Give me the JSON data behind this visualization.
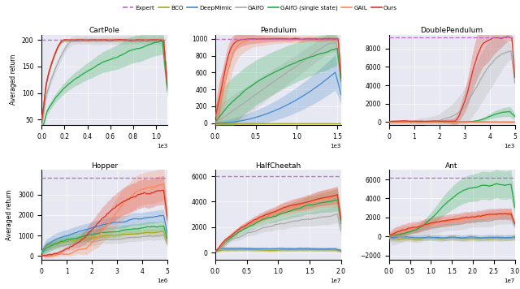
{
  "legend_entries": [
    "Expert",
    "BCO",
    "DeepMimic",
    "GAIfO",
    "GAIfO (single state)",
    "GAIL",
    "Ours"
  ],
  "colors": {
    "Expert": "#bb66cc",
    "BCO": "#aaaa22",
    "DeepMimic": "#4488cc",
    "GAIfO": "#aaaaaa",
    "GAIfO_single": "#22aa44",
    "GAIL": "#ff8855",
    "Ours": "#dd3322"
  },
  "subplots": [
    {
      "title": "CartPole",
      "xlabel_multiplier": "1e3",
      "xlim": [
        0,
        1100
      ],
      "ylim": [
        40,
        210
      ],
      "yticks": [
        50,
        100,
        150,
        200
      ],
      "expert_y": 200
    },
    {
      "title": "Pendulum",
      "xlabel_multiplier": "1e3",
      "xlim": [
        0,
        1550
      ],
      "ylim": [
        -20,
        1050
      ],
      "yticks": [
        0,
        200,
        400,
        600,
        800,
        1000
      ],
      "expert_y": 1000
    },
    {
      "title": "DoublePendulum",
      "xlabel_multiplier": "1e3",
      "xlim": [
        0,
        5000
      ],
      "ylim": [
        -300,
        9500
      ],
      "yticks": [
        0,
        2000,
        4000,
        6000,
        8000
      ],
      "expert_y": 9200
    },
    {
      "title": "Hopper",
      "xlabel_multiplier": "1e6",
      "xlim": [
        0,
        5000000
      ],
      "ylim": [
        -200,
        4200
      ],
      "yticks": [
        0,
        1000,
        2000,
        3000
      ],
      "expert_y": 3800
    },
    {
      "title": "HalfCheetah",
      "xlabel_multiplier": "1e7",
      "xlim": [
        0,
        20000000
      ],
      "ylim": [
        -600,
        6500
      ],
      "yticks": [
        0,
        2000,
        4000,
        6000
      ],
      "expert_y": 6000
    },
    {
      "title": "Ant",
      "xlabel_multiplier": "1e7",
      "xlim": [
        0,
        30000000
      ],
      "ylim": [
        -2500,
        7000
      ],
      "yticks": [
        -2000,
        0,
        2000,
        4000,
        6000
      ],
      "expert_y": 6200
    }
  ],
  "background_color": "#e8e8f2"
}
